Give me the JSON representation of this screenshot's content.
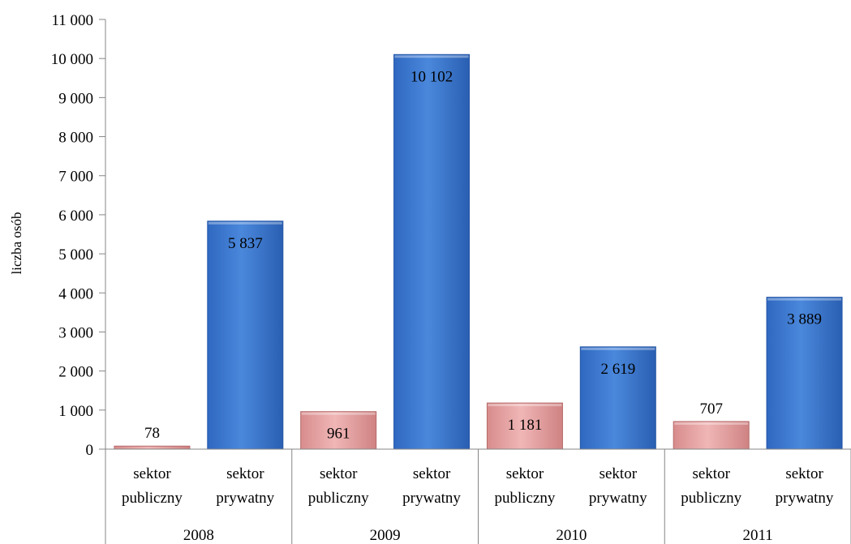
{
  "chart_data": {
    "type": "bar",
    "title": "",
    "xlabel": "",
    "ylabel": "liczba osób",
    "ylim": [
      0,
      11000
    ],
    "yticks": [
      0,
      1000,
      2000,
      3000,
      4000,
      5000,
      6000,
      7000,
      8000,
      9000,
      10000,
      11000
    ],
    "ytick_labels": [
      "0",
      "1 000",
      "2 000",
      "3 000",
      "4 000",
      "5 000",
      "6 000",
      "7 000",
      "8 000",
      "9 000",
      "10 000",
      "11 000"
    ],
    "grid": false,
    "legend": "none",
    "groups": [
      "2008",
      "2009",
      "2010",
      "2011"
    ],
    "categories": [
      {
        "line1": "sektor",
        "line2": "publiczny",
        "group": "2008",
        "value": 78,
        "label": "78",
        "sector": "public"
      },
      {
        "line1": "sektor",
        "line2": "prywatny",
        "group": "2008",
        "value": 5837,
        "label": "5 837",
        "sector": "private"
      },
      {
        "line1": "sektor",
        "line2": "publiczny",
        "group": "2009",
        "value": 961,
        "label": "961",
        "sector": "public"
      },
      {
        "line1": "sektor",
        "line2": "prywatny",
        "group": "2009",
        "value": 10102,
        "label": "10 102",
        "sector": "private"
      },
      {
        "line1": "sektor",
        "line2": "publiczny",
        "group": "2010",
        "value": 1181,
        "label": "1 181",
        "sector": "public"
      },
      {
        "line1": "sektor",
        "line2": "prywatny",
        "group": "2010",
        "value": 2619,
        "label": "2 619",
        "sector": "private"
      },
      {
        "line1": "sektor",
        "line2": "publiczny",
        "group": "2011",
        "value": 707,
        "label": "707",
        "sector": "public"
      },
      {
        "line1": "sektor",
        "line2": "prywatny",
        "group": "2011",
        "value": 3889,
        "label": "3 889",
        "sector": "private"
      }
    ],
    "colors": {
      "public": "#e6a0a0",
      "public_dark": "#b56a6a",
      "private": "#3f7ad0",
      "private_dark": "#2456a6"
    }
  }
}
